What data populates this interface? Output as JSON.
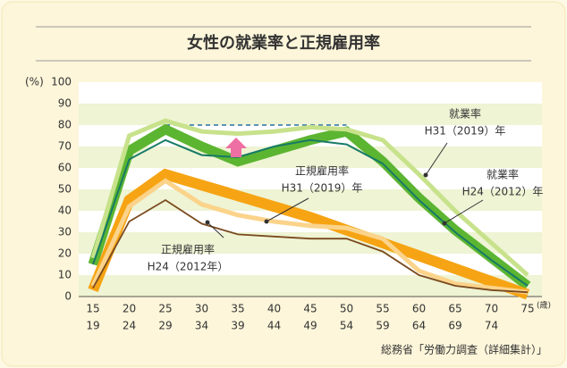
{
  "chart_data": {
    "type": "line",
    "title": "女性の就業率と正規雇用率",
    "y_unit": "(%)",
    "x_unit": "(歳)",
    "source": "総務省「労働力調査（詳細集計）」",
    "categories": [
      [
        "15",
        "19"
      ],
      [
        "20",
        "24"
      ],
      [
        "25",
        "29"
      ],
      [
        "30",
        "34"
      ],
      [
        "35",
        "39"
      ],
      [
        "40",
        "44"
      ],
      [
        "45",
        "49"
      ],
      [
        "50",
        "54"
      ],
      [
        "55",
        "59"
      ],
      [
        "60",
        "64"
      ],
      [
        "65",
        "69"
      ],
      [
        "70",
        "74"
      ],
      [
        "75"
      ]
    ],
    "ylim": [
      0,
      100
    ],
    "yticks": [
      0,
      10,
      20,
      30,
      40,
      50,
      60,
      70,
      80,
      90,
      100
    ],
    "stripes": true,
    "reference_line": {
      "value": 80,
      "color": "#2a6fa3"
    },
    "series": [
      {
        "color": "#5cb531",
        "width": 11,
        "values": [
          15,
          68,
          78,
          70,
          63,
          68,
          73,
          77,
          63,
          46,
          31,
          18,
          5
        ]
      },
      {
        "color": "#f6a414",
        "width": 12,
        "values": [
          3,
          45,
          57,
          52,
          47,
          42,
          37,
          31,
          25,
          19,
          13,
          7,
          1
        ]
      },
      {
        "color": "#c8e28c",
        "width": 5,
        "values": [
          18,
          75,
          82,
          77,
          76,
          77,
          79,
          78,
          73,
          57,
          40,
          25,
          10
        ]
      },
      {
        "color": "#fbd38a",
        "width": 5,
        "values": [
          5,
          42,
          54,
          43,
          38,
          35,
          33,
          32,
          27,
          12,
          6,
          4,
          2
        ]
      },
      {
        "color": "#167a66",
        "width": 2,
        "values": [
          15,
          64,
          73,
          66,
          65,
          70,
          73,
          71,
          62,
          45,
          30,
          17,
          5
        ]
      },
      {
        "color": "#7a4a1e",
        "width": 1.8,
        "values": [
          4,
          35,
          45,
          34,
          29,
          28,
          27,
          27,
          21,
          10,
          5,
          3,
          2
        ]
      }
    ],
    "annotations": [
      {
        "lines": [
          "就業率",
          "H31（2019）年"
        ]
      },
      {
        "lines": [
          "就業率",
          "H24（2012）年"
        ]
      },
      {
        "lines": [
          "正規雇用率",
          "H31（2019）年"
        ]
      },
      {
        "lines": [
          "正規雇用率",
          "H24（2012年）"
        ]
      }
    ]
  }
}
